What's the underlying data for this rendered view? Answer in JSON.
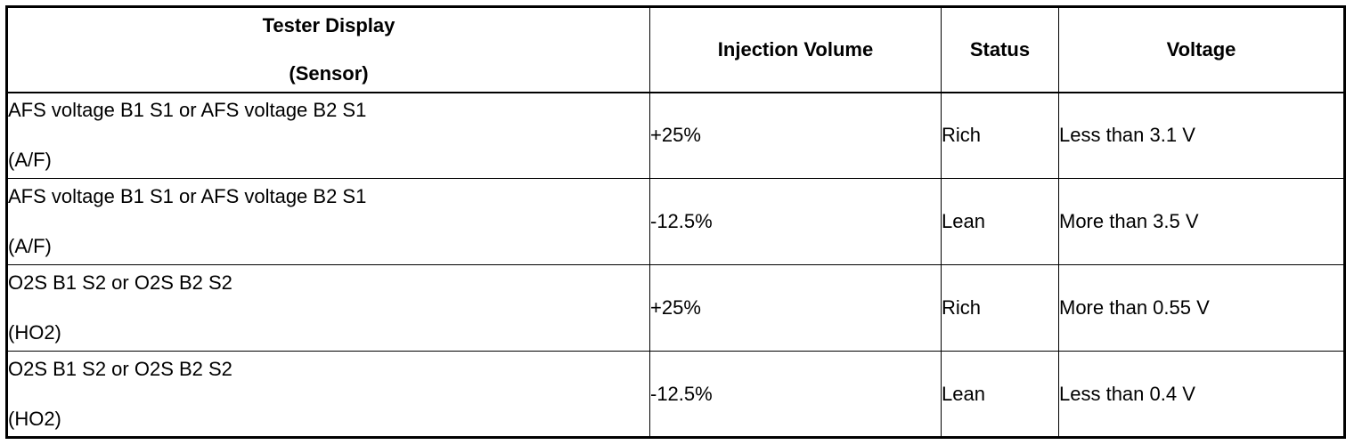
{
  "header": {
    "tester_display_line1": "Tester Display",
    "tester_display_line2": "(Sensor)",
    "injection_volume": "Injection Volume",
    "status": "Status",
    "voltage": "Voltage"
  },
  "rows": [
    {
      "sensor_line1": "AFS voltage B1 S1 or AFS voltage B2 S1",
      "sensor_line2": "(A/F)",
      "injection_volume": "+25%",
      "status": "Rich",
      "voltage": "Less than 3.1 V"
    },
    {
      "sensor_line1": "AFS voltage B1 S1 or AFS voltage B2 S1",
      "sensor_line2": "(A/F)",
      "injection_volume": "-12.5%",
      "status": "Lean",
      "voltage": "More than 3.5 V"
    },
    {
      "sensor_line1": "O2S B1 S2 or O2S B2 S2",
      "sensor_line2": "(HO2)",
      "injection_volume": "+25%",
      "status": "Rich",
      "voltage": "More than 0.55 V"
    },
    {
      "sensor_line1": "O2S B1 S2 or O2S B2 S2",
      "sensor_line2": "(HO2)",
      "injection_volume": "-12.5%",
      "status": "Lean",
      "voltage": "Less than 0.4 V"
    }
  ]
}
